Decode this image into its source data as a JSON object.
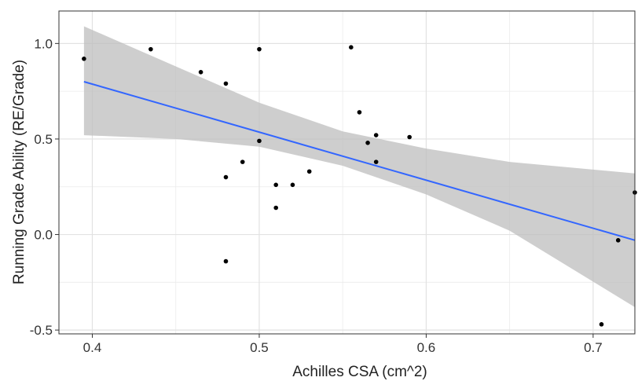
{
  "chart_data": {
    "type": "scatter",
    "title": "",
    "xlabel": "Achilles CSA (cm^2)",
    "ylabel": "Running Grade Ability (RE/Grade)",
    "xlim": [
      0.38,
      0.725
    ],
    "ylim": [
      -0.52,
      1.17
    ],
    "x_ticks": [
      0.4,
      0.5,
      0.6,
      0.7
    ],
    "x_tick_labels": [
      "0.4",
      "0.5",
      "0.6",
      "0.7"
    ],
    "y_ticks": [
      -0.5,
      0.0,
      0.5,
      1.0
    ],
    "y_tick_labels": [
      "-0.5",
      "0.0",
      "0.5",
      "1.0"
    ],
    "grid": true,
    "legend": "none",
    "colors": {
      "points": "#000000",
      "fit_line": "#3366ff",
      "confidence_band": "#bdbdbd",
      "grid": "#ebebeb",
      "panel_border": "#333333"
    },
    "points": [
      {
        "x": 0.395,
        "y": 0.92
      },
      {
        "x": 0.435,
        "y": 0.97
      },
      {
        "x": 0.465,
        "y": 0.85
      },
      {
        "x": 0.48,
        "y": 0.79
      },
      {
        "x": 0.48,
        "y": 0.3
      },
      {
        "x": 0.48,
        "y": -0.14
      },
      {
        "x": 0.49,
        "y": 0.38
      },
      {
        "x": 0.5,
        "y": 0.97
      },
      {
        "x": 0.5,
        "y": 0.49
      },
      {
        "x": 0.51,
        "y": 0.26
      },
      {
        "x": 0.51,
        "y": 0.14
      },
      {
        "x": 0.52,
        "y": 0.26
      },
      {
        "x": 0.53,
        "y": 0.33
      },
      {
        "x": 0.555,
        "y": 0.98
      },
      {
        "x": 0.56,
        "y": 0.64
      },
      {
        "x": 0.565,
        "y": 0.48
      },
      {
        "x": 0.57,
        "y": 0.52
      },
      {
        "x": 0.57,
        "y": 0.38
      },
      {
        "x": 0.59,
        "y": 0.51
      },
      {
        "x": 0.705,
        "y": -0.47
      },
      {
        "x": 0.715,
        "y": -0.03
      },
      {
        "x": 0.725,
        "y": 0.22
      }
    ],
    "fit_line": {
      "x": [
        0.395,
        0.725
      ],
      "y": [
        0.8,
        -0.03
      ]
    },
    "confidence_band": [
      {
        "x": 0.395,
        "lower": 0.52,
        "upper": 1.09
      },
      {
        "x": 0.45,
        "lower": 0.5,
        "upper": 0.88
      },
      {
        "x": 0.5,
        "lower": 0.46,
        "upper": 0.69
      },
      {
        "x": 0.55,
        "lower": 0.36,
        "upper": 0.54
      },
      {
        "x": 0.6,
        "lower": 0.21,
        "upper": 0.45
      },
      {
        "x": 0.65,
        "lower": 0.02,
        "upper": 0.38
      },
      {
        "x": 0.725,
        "lower": -0.38,
        "upper": 0.32
      }
    ]
  }
}
